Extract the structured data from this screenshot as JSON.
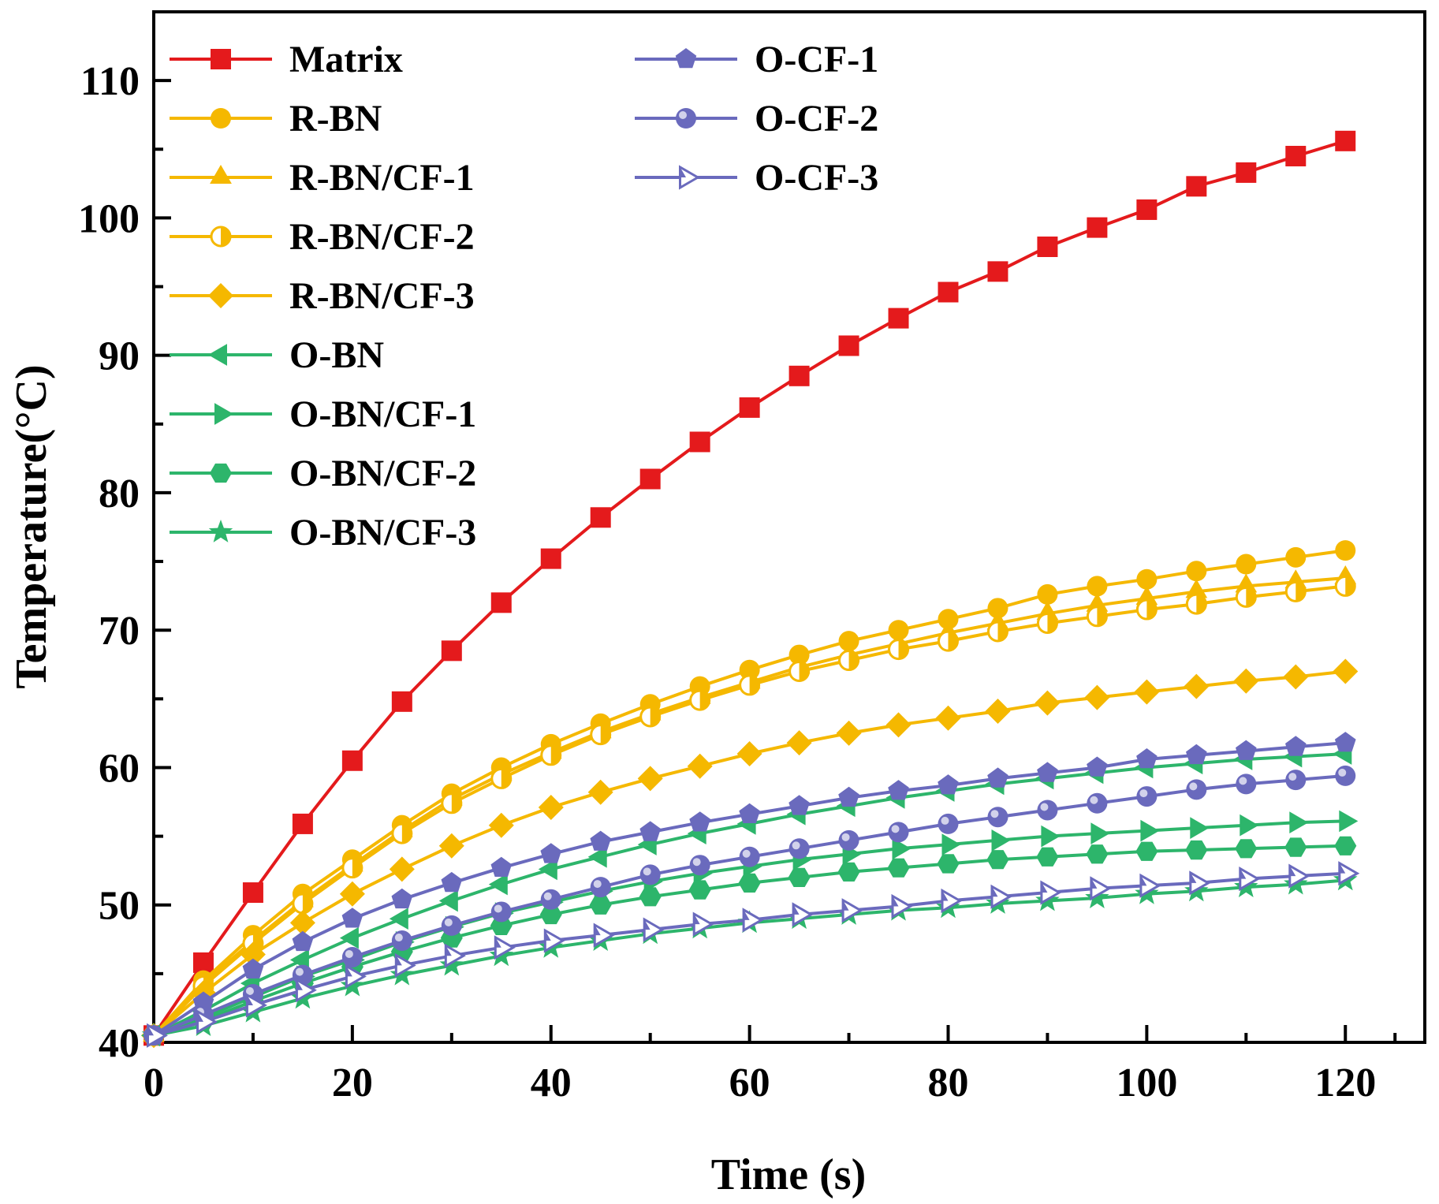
{
  "chart_data": {
    "type": "line",
    "title": "",
    "xlabel": "Time (s)",
    "ylabel": "Temperature(°C)",
    "xlim": [
      0,
      128
    ],
    "ylim": [
      40,
      115
    ],
    "xticks": [
      0,
      20,
      40,
      60,
      80,
      100,
      120
    ],
    "yticks": [
      40,
      50,
      60,
      70,
      80,
      90,
      100,
      110
    ],
    "grid": false,
    "legend_position": "top-left",
    "x": [
      0,
      5,
      10,
      15,
      20,
      25,
      30,
      35,
      40,
      45,
      50,
      55,
      60,
      65,
      70,
      75,
      80,
      85,
      90,
      95,
      100,
      105,
      110,
      115,
      120
    ],
    "series": [
      {
        "name": "Matrix",
        "color": "#e41a1c",
        "marker": "square",
        "values": [
          40.5,
          45.8,
          50.9,
          55.9,
          60.5,
          64.8,
          68.5,
          72.0,
          75.2,
          78.2,
          81.0,
          83.7,
          86.2,
          88.5,
          90.7,
          92.7,
          94.6,
          96.1,
          97.9,
          99.3,
          100.6,
          102.3,
          103.3,
          104.5,
          105.6
        ]
      },
      {
        "name": "R-BN",
        "color": "#f5b800",
        "marker": "circle",
        "values": [
          40.5,
          44.5,
          47.8,
          50.8,
          53.3,
          55.8,
          58.1,
          60.0,
          61.7,
          63.2,
          64.6,
          65.9,
          67.1,
          68.2,
          69.2,
          70.0,
          70.8,
          71.6,
          72.6,
          73.2,
          73.7,
          74.3,
          74.8,
          75.3,
          75.8
        ]
      },
      {
        "name": "R-BN/CF-1",
        "color": "#f5b800",
        "marker": "triangle",
        "values": [
          40.5,
          44.3,
          47.4,
          50.3,
          52.9,
          55.4,
          57.7,
          59.5,
          61.1,
          62.6,
          63.9,
          65.1,
          66.2,
          67.3,
          68.2,
          69.0,
          69.8,
          70.5,
          71.2,
          71.8,
          72.3,
          72.8,
          73.2,
          73.5,
          73.8
        ]
      },
      {
        "name": "R-BN/CF-2",
        "color": "#f5b800",
        "marker": "half-circle",
        "values": [
          40.5,
          44.1,
          47.2,
          50.1,
          52.7,
          55.2,
          57.4,
          59.2,
          60.9,
          62.4,
          63.7,
          64.9,
          66.0,
          67.0,
          67.8,
          68.6,
          69.2,
          69.9,
          70.5,
          71.0,
          71.5,
          71.9,
          72.4,
          72.8,
          73.2
        ]
      },
      {
        "name": "R-BN/CF-3",
        "color": "#f5b800",
        "marker": "diamond",
        "values": [
          40.5,
          43.6,
          46.4,
          48.7,
          50.8,
          52.6,
          54.3,
          55.8,
          57.1,
          58.2,
          59.2,
          60.1,
          61.0,
          61.8,
          62.5,
          63.1,
          63.6,
          64.1,
          64.7,
          65.1,
          65.5,
          65.9,
          66.3,
          66.6,
          67.0
        ]
      },
      {
        "name": "O-BN",
        "color": "#2db56b",
        "marker": "triangle-left",
        "values": [
          40.5,
          42.3,
          44.3,
          46.0,
          47.6,
          49.0,
          50.3,
          51.5,
          52.6,
          53.5,
          54.4,
          55.2,
          55.9,
          56.6,
          57.2,
          57.8,
          58.3,
          58.8,
          59.2,
          59.6,
          60.0,
          60.3,
          60.6,
          60.8,
          61.0
        ]
      },
      {
        "name": "O-BN/CF-1",
        "color": "#2db56b",
        "marker": "triangle-right",
        "values": [
          40.5,
          41.8,
          43.3,
          44.8,
          46.0,
          47.3,
          48.4,
          49.4,
          50.2,
          51.0,
          51.7,
          52.3,
          52.8,
          53.3,
          53.7,
          54.1,
          54.4,
          54.7,
          55.0,
          55.2,
          55.4,
          55.6,
          55.8,
          56.0,
          56.1
        ]
      },
      {
        "name": "O-BN/CF-2",
        "color": "#2db56b",
        "marker": "hexagon",
        "values": [
          40.5,
          41.6,
          43.0,
          44.3,
          45.5,
          46.6,
          47.6,
          48.5,
          49.3,
          50.0,
          50.6,
          51.1,
          51.6,
          52.0,
          52.4,
          52.7,
          53.0,
          53.3,
          53.5,
          53.7,
          53.9,
          54.0,
          54.1,
          54.2,
          54.3
        ]
      },
      {
        "name": "O-BN/CF-3",
        "color": "#2db56b",
        "marker": "star",
        "values": [
          40.5,
          41.2,
          42.2,
          43.2,
          44.1,
          44.9,
          45.6,
          46.3,
          46.9,
          47.4,
          47.9,
          48.3,
          48.7,
          49.0,
          49.3,
          49.6,
          49.8,
          50.1,
          50.3,
          50.5,
          50.8,
          51.0,
          51.3,
          51.5,
          51.8
        ]
      },
      {
        "name": "O-CF-1",
        "color": "#6a6abd",
        "marker": "pentagon",
        "values": [
          40.5,
          42.9,
          45.3,
          47.3,
          49.0,
          50.4,
          51.6,
          52.7,
          53.7,
          54.6,
          55.3,
          56.0,
          56.6,
          57.2,
          57.8,
          58.3,
          58.7,
          59.2,
          59.6,
          60.0,
          60.6,
          60.9,
          61.2,
          61.5,
          61.8
        ]
      },
      {
        "name": "O-CF-2",
        "color": "#6a6abd",
        "marker": "sphere",
        "values": [
          40.5,
          42.0,
          43.5,
          44.9,
          46.2,
          47.4,
          48.5,
          49.5,
          50.4,
          51.3,
          52.2,
          52.9,
          53.5,
          54.1,
          54.7,
          55.3,
          55.9,
          56.4,
          56.9,
          57.4,
          57.9,
          58.4,
          58.8,
          59.1,
          59.4
        ]
      },
      {
        "name": "O-CF-3",
        "color": "#6a6abd",
        "marker": "half-triangle-right",
        "values": [
          40.5,
          41.5,
          42.7,
          43.8,
          44.8,
          45.6,
          46.3,
          46.9,
          47.4,
          47.8,
          48.2,
          48.6,
          48.9,
          49.3,
          49.6,
          49.9,
          50.3,
          50.6,
          50.9,
          51.2,
          51.4,
          51.6,
          51.9,
          52.1,
          52.3
        ]
      }
    ]
  }
}
